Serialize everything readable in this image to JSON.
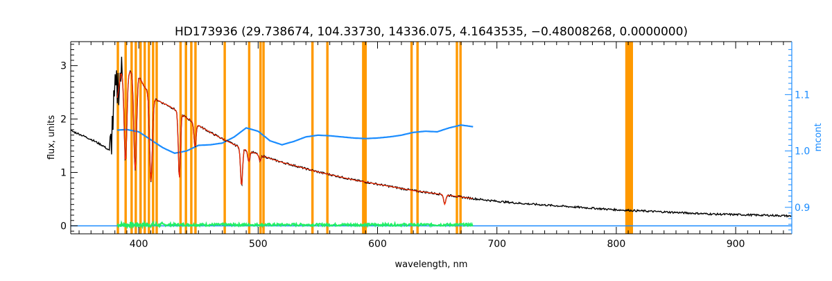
{
  "chart_data": {
    "type": "line",
    "title": "HD173936    (29.738674, 104.33730, 14336.075, 4.1643535, −0.48008268, 0.0000000)",
    "xlabel": "wavelength, nm",
    "ylabel": "flux, units",
    "y2label": "mcont",
    "xlim": [
      343,
      947
    ],
    "ylim": [
      -0.15,
      3.45
    ],
    "y2lim": [
      0.853,
      1.194
    ],
    "x_ticks": [
      400,
      500,
      600,
      700,
      800,
      900
    ],
    "y_ticks": [
      0,
      1,
      2,
      3
    ],
    "y2_ticks": [
      0.9,
      1.0,
      1.1
    ],
    "masked_regions": [
      [
        381.5,
        383.5
      ],
      [
        388,
        390
      ],
      [
        393,
        395
      ],
      [
        396.5,
        398.5
      ],
      [
        400.5,
        402.5
      ],
      [
        404,
        406
      ],
      [
        407.5,
        409.5
      ],
      [
        411,
        413
      ],
      [
        414,
        416
      ],
      [
        434,
        436
      ],
      [
        438.5,
        440.5
      ],
      [
        443,
        445
      ],
      [
        446.5,
        448.5
      ],
      [
        471,
        473
      ],
      [
        491.5,
        493.5
      ],
      [
        501,
        503
      ],
      [
        503.5,
        505.5
      ],
      [
        544.5,
        546.5
      ],
      [
        557,
        559
      ],
      [
        587,
        591
      ],
      [
        627.5,
        629.5
      ],
      [
        632.5,
        634.5
      ],
      [
        665.5,
        667.5
      ],
      [
        668.5,
        670.5
      ],
      [
        807.5,
        814
      ]
    ],
    "series": [
      {
        "color": "#000000",
        "x": [
          343,
          350,
          360,
          370,
          376,
          380,
          385,
          389,
          391,
          395,
          400,
          405,
          408,
          412,
          416,
          420,
          425,
          430,
          434,
          440,
          445,
          450,
          460,
          470,
          480,
          490,
          500,
          510,
          520,
          530,
          540,
          550,
          560,
          570,
          580,
          590,
          600,
          610,
          620,
          630,
          640,
          650,
          660,
          670,
          680,
          700,
          720,
          740,
          760,
          780,
          800,
          820,
          840,
          860,
          880,
          900,
          920,
          940,
          947
        ],
        "values": [
          1.78,
          1.72,
          1.62,
          1.5,
          1.4,
          2.4,
          2.85,
          2.95,
          2.9,
          2.88,
          2.8,
          2.6,
          2.5,
          2.38,
          2.35,
          2.3,
          2.25,
          2.18,
          2.12,
          2.02,
          1.95,
          1.88,
          1.75,
          1.63,
          1.52,
          1.42,
          1.34,
          1.26,
          1.19,
          1.13,
          1.07,
          1.01,
          0.96,
          0.91,
          0.86,
          0.82,
          0.78,
          0.74,
          0.7,
          0.66,
          0.63,
          0.6,
          0.57,
          0.54,
          0.51,
          0.46,
          0.42,
          0.39,
          0.36,
          0.33,
          0.3,
          0.28,
          0.26,
          0.24,
          0.22,
          0.21,
          0.2,
          0.19,
          0.18
        ]
      },
      {
        "color": "#ff2a00",
        "x": [
          382,
          385,
          389,
          391,
          395,
          400,
          405,
          408,
          412,
          416,
          420,
          425,
          430,
          434,
          440,
          445,
          450,
          460,
          470,
          480,
          490,
          500,
          510,
          520,
          530,
          540,
          550,
          560,
          570,
          580,
          590,
          600,
          610,
          620,
          630,
          640,
          650,
          660,
          670,
          680
        ],
        "values": [
          2.4,
          2.85,
          2.95,
          2.9,
          2.88,
          2.8,
          2.6,
          2.5,
          2.38,
          2.35,
          2.3,
          2.25,
          2.18,
          2.12,
          2.02,
          1.95,
          1.88,
          1.75,
          1.63,
          1.52,
          1.42,
          1.34,
          1.26,
          1.19,
          1.13,
          1.07,
          1.01,
          0.96,
          0.91,
          0.86,
          0.82,
          0.78,
          0.74,
          0.7,
          0.66,
          0.63,
          0.6,
          0.57,
          0.54,
          0.51
        ]
      }
    ],
    "absorption_lines": [
      {
        "x": 388.9,
        "depth": 1.75
      },
      {
        "x": 397.0,
        "depth": 1.8
      },
      {
        "x": 410.2,
        "depth": 1.6
      },
      {
        "x": 434.0,
        "depth": 1.25
      },
      {
        "x": 447.1,
        "depth": 0.45
      },
      {
        "x": 486.1,
        "depth": 0.72
      },
      {
        "x": 492.2,
        "depth": 0.2
      },
      {
        "x": 501.6,
        "depth": 0.12
      },
      {
        "x": 656.3,
        "depth": 0.18
      }
    ],
    "residual_series": {
      "color": "#22ee66",
      "x_range": [
        382,
        680
      ],
      "level": 0.02
    },
    "mcont_series": {
      "color": "#1a8cff",
      "x": [
        382,
        390,
        400,
        410,
        420,
        430,
        440,
        450,
        460,
        470,
        480,
        490,
        500,
        510,
        520,
        530,
        540,
        550,
        560,
        570,
        580,
        590,
        600,
        610,
        620,
        630,
        640,
        650,
        660,
        670,
        680
      ],
      "values": [
        1.037,
        1.038,
        1.034,
        1.02,
        1.006,
        0.996,
        1.0,
        1.01,
        1.011,
        1.014,
        1.025,
        1.041,
        1.035,
        1.018,
        1.011,
        1.017,
        1.025,
        1.028,
        1.027,
        1.025,
        1.023,
        1.022,
        1.023,
        1.025,
        1.028,
        1.033,
        1.035,
        1.034,
        1.041,
        1.046,
        1.043
      ]
    },
    "zero_line": {
      "color": "#1a8cff",
      "y": 0.0
    }
  }
}
